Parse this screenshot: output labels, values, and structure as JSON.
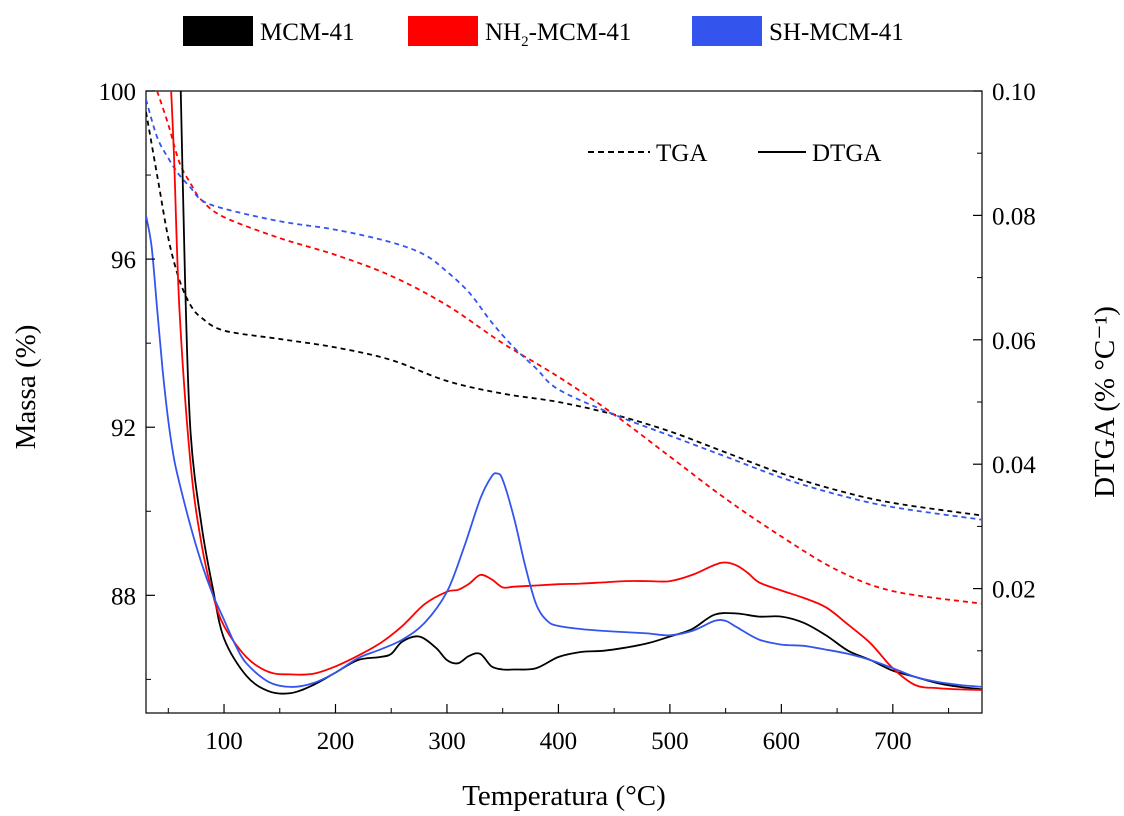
{
  "chart_data": {
    "type": "line",
    "xlabel": "Temperatura (°C)",
    "ylabel_left": "Massa (%)",
    "ylabel_right": "DTGA (% °C⁻¹)",
    "xlim": [
      30,
      780
    ],
    "ylim_left": [
      85.2,
      100
    ],
    "ylim_right": [
      0.0,
      0.1
    ],
    "x_ticks": [
      100,
      200,
      300,
      400,
      500,
      600,
      700
    ],
    "y_left_ticks": [
      88,
      92,
      96,
      100
    ],
    "y_right_ticks": [
      0.02,
      0.04,
      0.06,
      0.08,
      0.1
    ],
    "y_right_tick_labels": [
      "0.02",
      "0.04",
      "0.06",
      "0.08",
      "0.10"
    ],
    "grid": false,
    "legend_samples": {
      "position": "top-outside",
      "entries": [
        {
          "label": "MCM-41",
          "color": "#000000"
        },
        {
          "label_main": "NH",
          "label_sub": "2",
          "label_rest": "-MCM-41",
          "color": "#ff0000"
        },
        {
          "label": "SH-MCM-41",
          "color": "#3355ee"
        }
      ]
    },
    "legend_styles": {
      "position": "top-right",
      "entries": [
        {
          "label": "TGA",
          "dash": "dashed"
        },
        {
          "label": "DTGA",
          "dash": "solid"
        }
      ]
    },
    "series": [
      {
        "sample": "MCM-41",
        "kind": "TGA",
        "axis": "left",
        "color": "#000000",
        "x": [
          30,
          40,
          50,
          60,
          70,
          80,
          100,
          150,
          200,
          250,
          300,
          350,
          400,
          450,
          500,
          550,
          600,
          650,
          700,
          780
        ],
        "y": [
          99.5,
          98.0,
          96.5,
          95.5,
          94.9,
          94.6,
          94.3,
          94.1,
          93.9,
          93.6,
          93.1,
          92.8,
          92.6,
          92.3,
          91.9,
          91.4,
          90.9,
          90.5,
          90.2,
          89.9
        ]
      },
      {
        "sample": "NH2-MCM-41",
        "kind": "TGA",
        "axis": "left",
        "color": "#ff0000",
        "x": [
          40,
          50,
          60,
          70,
          80,
          100,
          150,
          200,
          250,
          300,
          350,
          400,
          450,
          500,
          550,
          600,
          650,
          700,
          780
        ],
        "y": [
          100.0,
          99.2,
          98.3,
          97.8,
          97.4,
          97.0,
          96.5,
          96.1,
          95.6,
          94.9,
          94.0,
          93.2,
          92.3,
          91.3,
          90.3,
          89.4,
          88.6,
          88.1,
          87.8
        ]
      },
      {
        "sample": "SH-MCM-41",
        "kind": "TGA",
        "axis": "left",
        "color": "#3355ee",
        "x": [
          30,
          40,
          50,
          60,
          70,
          80,
          100,
          150,
          200,
          250,
          280,
          300,
          320,
          340,
          360,
          380,
          400,
          450,
          500,
          550,
          600,
          650,
          700,
          780
        ],
        "y": [
          99.8,
          98.9,
          98.4,
          98.0,
          97.7,
          97.4,
          97.2,
          96.9,
          96.7,
          96.4,
          96.1,
          95.7,
          95.2,
          94.5,
          93.9,
          93.4,
          92.9,
          92.3,
          91.8,
          91.3,
          90.8,
          90.4,
          90.1,
          89.8
        ]
      },
      {
        "sample": "MCM-41",
        "kind": "DTGA",
        "axis": "right",
        "color": "#000000",
        "x": [
          60,
          65,
          70,
          80,
          90,
          100,
          120,
          140,
          160,
          180,
          200,
          220,
          240,
          250,
          260,
          275,
          290,
          300,
          310,
          320,
          330,
          340,
          350,
          360,
          380,
          400,
          420,
          440,
          460,
          480,
          500,
          520,
          540,
          560,
          580,
          600,
          620,
          640,
          660,
          680,
          700,
          720,
          740,
          760,
          780
        ],
        "y": [
          0.11,
          0.07,
          0.045,
          0.03,
          0.02,
          0.012,
          0.006,
          0.0035,
          0.0032,
          0.0045,
          0.0065,
          0.0085,
          0.009,
          0.0095,
          0.0115,
          0.0123,
          0.0105,
          0.0085,
          0.008,
          0.0092,
          0.0095,
          0.0075,
          0.007,
          0.007,
          0.0072,
          0.009,
          0.0098,
          0.01,
          0.0105,
          0.0112,
          0.0123,
          0.0135,
          0.0158,
          0.016,
          0.0155,
          0.0155,
          0.0145,
          0.0125,
          0.01,
          0.0085,
          0.0068,
          0.0058,
          0.0048,
          0.0042,
          0.0038
        ]
      },
      {
        "sample": "NH2-MCM-41",
        "kind": "DTGA",
        "axis": "right",
        "color": "#ff0000",
        "x": [
          50,
          55,
          60,
          70,
          80,
          90,
          100,
          120,
          140,
          160,
          180,
          200,
          220,
          240,
          260,
          280,
          300,
          310,
          320,
          330,
          340,
          350,
          360,
          380,
          400,
          420,
          440,
          460,
          480,
          500,
          520,
          540,
          550,
          560,
          570,
          580,
          600,
          620,
          640,
          660,
          680,
          700,
          720,
          740,
          760,
          780
        ],
        "y": [
          0.11,
          0.09,
          0.065,
          0.04,
          0.027,
          0.019,
          0.014,
          0.009,
          0.0066,
          0.0062,
          0.0063,
          0.0075,
          0.0092,
          0.0112,
          0.014,
          0.0175,
          0.0195,
          0.0198,
          0.0208,
          0.0222,
          0.0215,
          0.0202,
          0.0203,
          0.0205,
          0.0207,
          0.0208,
          0.021,
          0.0212,
          0.0212,
          0.0212,
          0.0222,
          0.0238,
          0.0242,
          0.0237,
          0.0225,
          0.021,
          0.0197,
          0.0185,
          0.017,
          0.0142,
          0.0112,
          0.0072,
          0.0045,
          0.004,
          0.0038,
          0.0037
        ]
      },
      {
        "sample": "SH-MCM-41",
        "kind": "DTGA",
        "axis": "right",
        "color": "#3355ee",
        "x": [
          30,
          35,
          40,
          45,
          50,
          55,
          60,
          70,
          80,
          90,
          100,
          110,
          120,
          140,
          160,
          180,
          200,
          220,
          240,
          260,
          280,
          300,
          315,
          330,
          340,
          345,
          350,
          360,
          370,
          380,
          390,
          400,
          420,
          440,
          460,
          480,
          500,
          520,
          540,
          550,
          560,
          580,
          600,
          620,
          640,
          660,
          680,
          700,
          720,
          740,
          760,
          780
        ],
        "y": [
          0.08,
          0.075,
          0.065,
          0.055,
          0.047,
          0.041,
          0.037,
          0.03,
          0.024,
          0.019,
          0.015,
          0.011,
          0.008,
          0.005,
          0.0042,
          0.0048,
          0.0065,
          0.0088,
          0.0102,
          0.0118,
          0.0145,
          0.0195,
          0.0265,
          0.0345,
          0.038,
          0.0385,
          0.0375,
          0.0315,
          0.0238,
          0.0175,
          0.0148,
          0.014,
          0.0135,
          0.0132,
          0.013,
          0.0128,
          0.0125,
          0.0132,
          0.0148,
          0.0148,
          0.0138,
          0.0118,
          0.011,
          0.0108,
          0.0102,
          0.0095,
          0.0085,
          0.0072,
          0.0058,
          0.005,
          0.0045,
          0.0042
        ]
      }
    ]
  }
}
